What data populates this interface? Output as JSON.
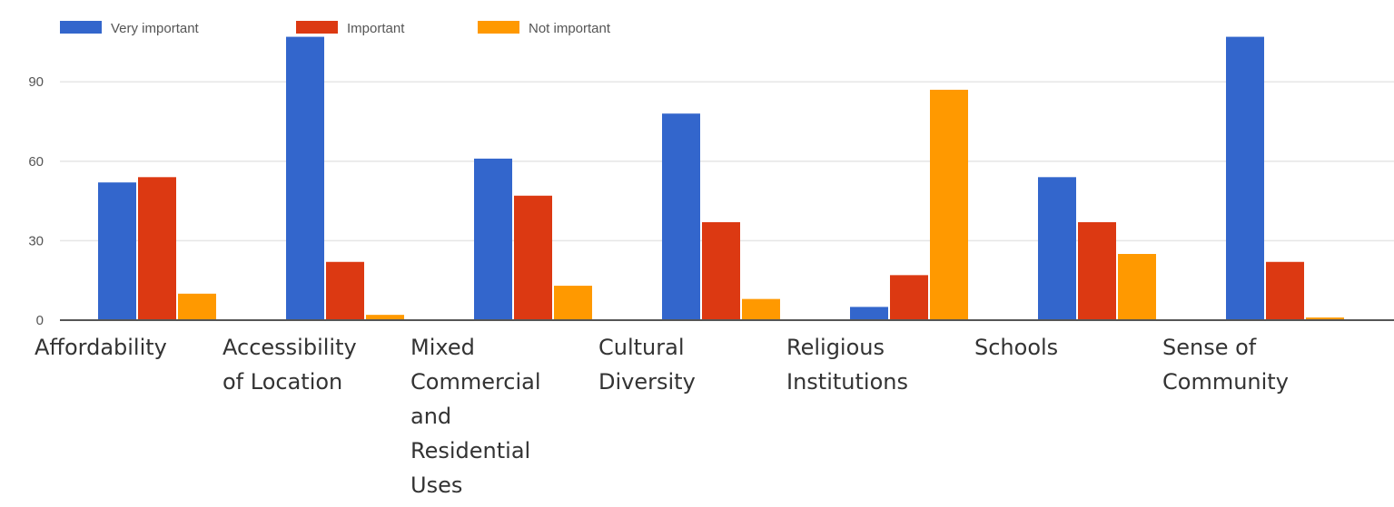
{
  "chart_data": {
    "type": "bar",
    "title": "",
    "xlabel": "",
    "ylabel": "",
    "categories": [
      "Affordability",
      "Accessibility of Location",
      "Mixed Commercial and Residential Uses",
      "Cultural Diversity",
      "Religious Institutions",
      "Schools",
      "Sense of Community"
    ],
    "category_lines": [
      [
        "Affordability"
      ],
      [
        "Accessibility",
        "of Location"
      ],
      [
        "Mixed",
        "Commercial",
        "and",
        "Residential",
        "Uses"
      ],
      [
        "Cultural",
        "Diversity"
      ],
      [
        "Religious",
        "Institutions"
      ],
      [
        "Schools"
      ],
      [
        "Sense of",
        "Community"
      ]
    ],
    "series": [
      {
        "name": "Very important",
        "color": "#3366cc",
        "values": [
          52,
          107,
          61,
          78,
          5,
          54,
          107
        ]
      },
      {
        "name": "Important",
        "color": "#dc3912",
        "values": [
          54,
          22,
          47,
          37,
          17,
          37,
          22
        ]
      },
      {
        "name": "Not important",
        "color": "#ff9900",
        "values": [
          10,
          2,
          13,
          8,
          87,
          25,
          1
        ]
      }
    ],
    "yticks": [
      0,
      30,
      60,
      90
    ],
    "ylim": [
      0,
      110
    ],
    "grid": true,
    "legend_position": "top-left"
  }
}
